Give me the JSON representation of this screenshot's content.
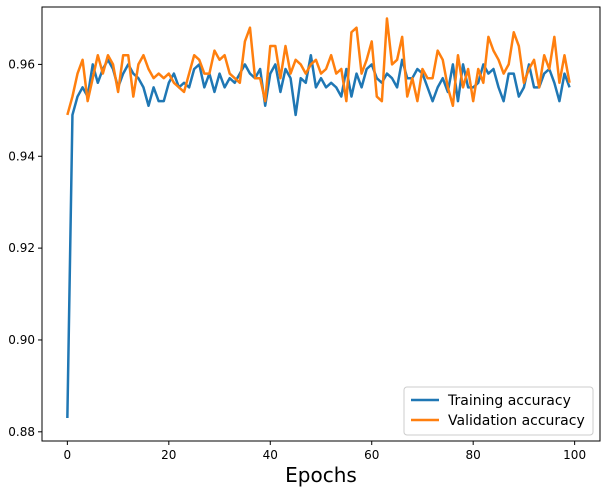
{
  "chart_data": {
    "type": "line",
    "xlabel": "Epochs",
    "ylabel": "",
    "xlim": [
      -5,
      105
    ],
    "ylim": [
      0.878,
      0.9725
    ],
    "xticks": [
      0,
      20,
      40,
      60,
      80,
      100
    ],
    "yticks": [
      0.88,
      0.9,
      0.92,
      0.94,
      0.96
    ],
    "ytick_labels": [
      "0.88",
      "0.90",
      "0.92",
      "0.94",
      "0.96"
    ],
    "grid": false,
    "legend_position": "lower-right",
    "series": [
      {
        "name": "Training accuracy",
        "color": "#1f77b4",
        "x": [
          0,
          1,
          2,
          3,
          4,
          5,
          6,
          7,
          8,
          9,
          10,
          11,
          12,
          13,
          14,
          15,
          16,
          17,
          18,
          19,
          20,
          21,
          22,
          23,
          24,
          25,
          26,
          27,
          28,
          29,
          30,
          31,
          32,
          33,
          34,
          35,
          36,
          37,
          38,
          39,
          40,
          41,
          42,
          43,
          44,
          45,
          46,
          47,
          48,
          49,
          50,
          51,
          52,
          53,
          54,
          55,
          56,
          57,
          58,
          59,
          60,
          61,
          62,
          63,
          64,
          65,
          66,
          67,
          68,
          69,
          70,
          71,
          72,
          73,
          74,
          75,
          76,
          77,
          78,
          79,
          80,
          81,
          82,
          83,
          84,
          85,
          86,
          87,
          88,
          89,
          90,
          91,
          92,
          93,
          94,
          95,
          96,
          97,
          98,
          99
        ],
        "y": [
          0.883,
          0.949,
          0.953,
          0.955,
          0.953,
          0.96,
          0.956,
          0.959,
          0.961,
          0.959,
          0.955,
          0.958,
          0.96,
          0.958,
          0.957,
          0.955,
          0.951,
          0.955,
          0.952,
          0.952,
          0.956,
          0.958,
          0.955,
          0.956,
          0.955,
          0.959,
          0.96,
          0.955,
          0.958,
          0.954,
          0.958,
          0.955,
          0.957,
          0.956,
          0.958,
          0.96,
          0.958,
          0.957,
          0.959,
          0.951,
          0.958,
          0.96,
          0.954,
          0.959,
          0.957,
          0.949,
          0.957,
          0.956,
          0.962,
          0.955,
          0.957,
          0.955,
          0.956,
          0.955,
          0.953,
          0.959,
          0.953,
          0.958,
          0.955,
          0.959,
          0.96,
          0.957,
          0.956,
          0.958,
          0.957,
          0.955,
          0.961,
          0.957,
          0.957,
          0.959,
          0.958,
          0.955,
          0.952,
          0.955,
          0.957,
          0.954,
          0.96,
          0.952,
          0.96,
          0.955,
          0.955,
          0.956,
          0.96,
          0.958,
          0.959,
          0.955,
          0.952,
          0.958,
          0.958,
          0.953,
          0.955,
          0.96,
          0.955,
          0.955,
          0.958,
          0.959,
          0.956,
          0.952,
          0.958,
          0.955
        ]
      },
      {
        "name": "Validation accuracy",
        "color": "#ff7f0e",
        "x": [
          0,
          1,
          2,
          3,
          4,
          5,
          6,
          7,
          8,
          9,
          10,
          11,
          12,
          13,
          14,
          15,
          16,
          17,
          18,
          19,
          20,
          21,
          22,
          23,
          24,
          25,
          26,
          27,
          28,
          29,
          30,
          31,
          32,
          33,
          34,
          35,
          36,
          37,
          38,
          39,
          40,
          41,
          42,
          43,
          44,
          45,
          46,
          47,
          48,
          49,
          50,
          51,
          52,
          53,
          54,
          55,
          56,
          57,
          58,
          59,
          60,
          61,
          62,
          63,
          64,
          65,
          66,
          67,
          68,
          69,
          70,
          71,
          72,
          73,
          74,
          75,
          76,
          77,
          78,
          79,
          80,
          81,
          82,
          83,
          84,
          85,
          86,
          87,
          88,
          89,
          90,
          91,
          92,
          93,
          94,
          95,
          96,
          97,
          98,
          99
        ],
        "y": [
          0.949,
          0.953,
          0.958,
          0.961,
          0.952,
          0.957,
          0.962,
          0.958,
          0.962,
          0.96,
          0.954,
          0.962,
          0.962,
          0.953,
          0.96,
          0.962,
          0.959,
          0.957,
          0.958,
          0.957,
          0.958,
          0.956,
          0.955,
          0.954,
          0.958,
          0.962,
          0.961,
          0.958,
          0.958,
          0.963,
          0.961,
          0.962,
          0.958,
          0.957,
          0.956,
          0.965,
          0.968,
          0.957,
          0.957,
          0.952,
          0.964,
          0.964,
          0.957,
          0.964,
          0.958,
          0.961,
          0.96,
          0.958,
          0.96,
          0.961,
          0.958,
          0.959,
          0.962,
          0.958,
          0.959,
          0.952,
          0.967,
          0.968,
          0.958,
          0.961,
          0.965,
          0.953,
          0.952,
          0.97,
          0.96,
          0.961,
          0.966,
          0.953,
          0.957,
          0.952,
          0.959,
          0.957,
          0.957,
          0.963,
          0.961,
          0.955,
          0.951,
          0.962,
          0.955,
          0.959,
          0.952,
          0.959,
          0.956,
          0.966,
          0.963,
          0.961,
          0.958,
          0.96,
          0.967,
          0.964,
          0.956,
          0.959,
          0.961,
          0.955,
          0.962,
          0.959,
          0.966,
          0.956,
          0.962,
          0.956
        ]
      }
    ]
  }
}
